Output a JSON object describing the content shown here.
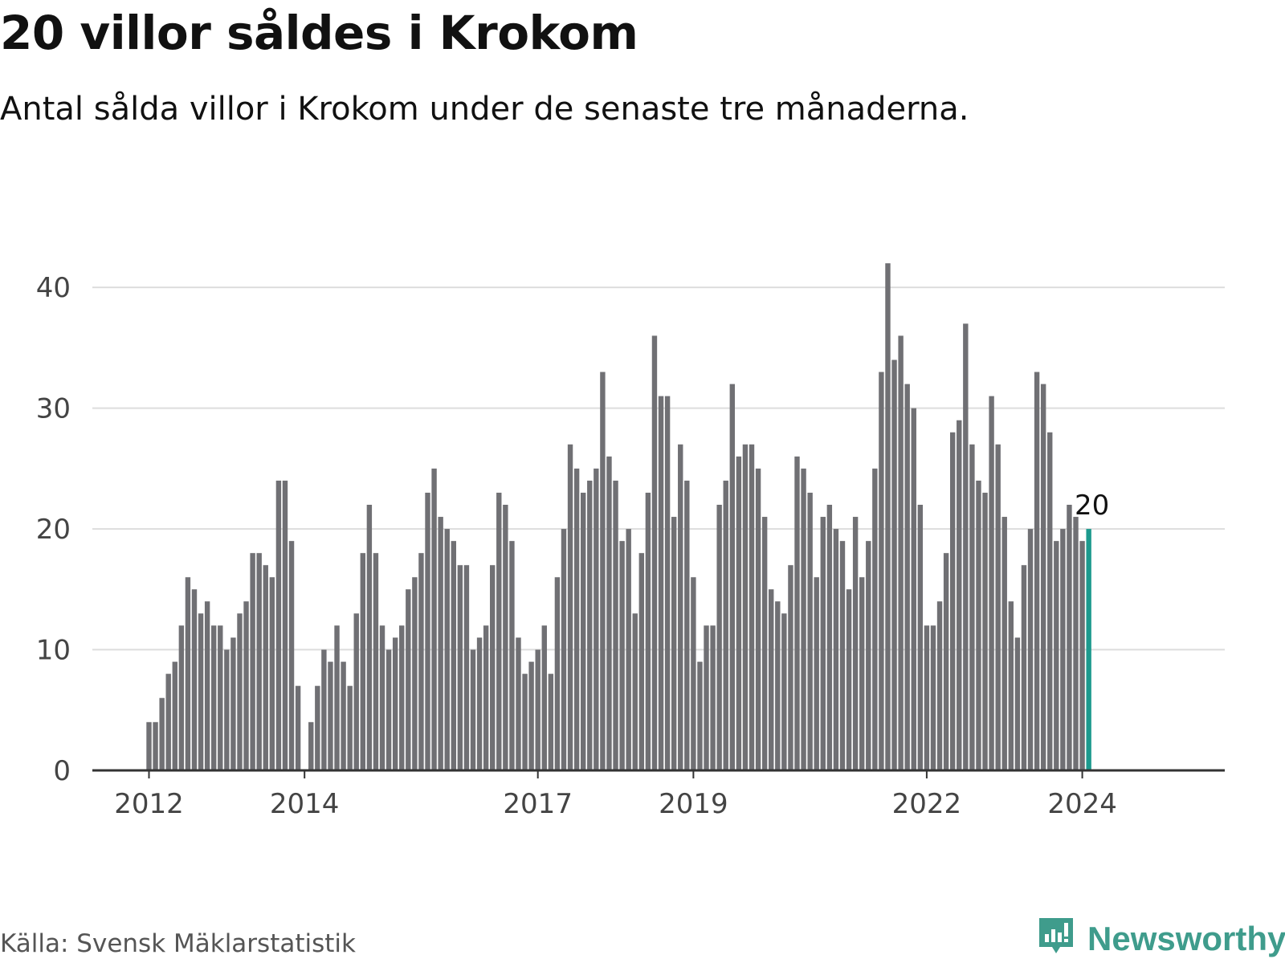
{
  "title": "20 villor såldes i Krokom",
  "subtitle": "Antal sålda villor i Krokom under de senaste tre månaderna.",
  "source": "Källa: Svensk Mäklarstatistik",
  "brand": "Newsworthy",
  "colors": {
    "bar": "#707074",
    "highlight": "#1d9a8e",
    "grid": "#dddddd",
    "axis": "#333333",
    "brand": "#3f9c8c"
  },
  "chart_data": {
    "type": "bar",
    "title": "20 villor såldes i Krokom",
    "xlabel": "",
    "ylabel": "",
    "ylim": [
      0,
      44
    ],
    "yticks": [
      0,
      10,
      20,
      30,
      40
    ],
    "grid": true,
    "start": "2012-01",
    "xticks": [
      {
        "label": "2012",
        "index": 0
      },
      {
        "label": "2014",
        "index": 24
      },
      {
        "label": "2017",
        "index": 60
      },
      {
        "label": "2019",
        "index": 84
      },
      {
        "label": "2022",
        "index": 120
      },
      {
        "label": "2024",
        "index": 144
      }
    ],
    "values": [
      4,
      4,
      6,
      8,
      9,
      12,
      16,
      15,
      13,
      14,
      12,
      12,
      10,
      11,
      13,
      14,
      18,
      18,
      17,
      16,
      24,
      24,
      19,
      7,
      null,
      4,
      7,
      10,
      9,
      12,
      9,
      7,
      13,
      18,
      22,
      18,
      12,
      10,
      11,
      12,
      15,
      16,
      18,
      23,
      25,
      21,
      20,
      19,
      17,
      17,
      10,
      11,
      12,
      17,
      23,
      22,
      19,
      11,
      8,
      9,
      10,
      12,
      8,
      16,
      20,
      27,
      25,
      23,
      24,
      25,
      33,
      26,
      24,
      19,
      20,
      13,
      18,
      23,
      36,
      31,
      31,
      21,
      27,
      24,
      16,
      9,
      12,
      12,
      22,
      24,
      32,
      26,
      27,
      27,
      25,
      21,
      15,
      14,
      13,
      17,
      26,
      25,
      23,
      16,
      21,
      22,
      20,
      19,
      15,
      21,
      16,
      19,
      25,
      33,
      42,
      34,
      36,
      32,
      30,
      22,
      12,
      12,
      14,
      18,
      28,
      29,
      37,
      27,
      24,
      23,
      31,
      27,
      21,
      14,
      11,
      17,
      20,
      33,
      32,
      28,
      19,
      20,
      22,
      21,
      19,
      20
    ],
    "highlight_last": true,
    "last_label": "20"
  }
}
